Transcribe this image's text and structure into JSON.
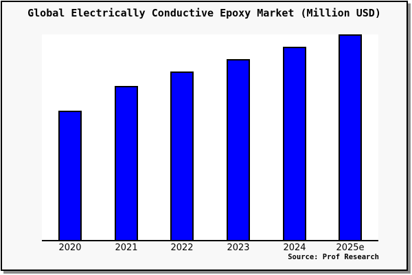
{
  "window": {
    "title": "Global Electrically Conductive Epoxy Market (Million USD)"
  },
  "chart_data": {
    "type": "bar",
    "title": "Global Electrically Conductive Epoxy Market (Million USD)",
    "categories": [
      "2020",
      "2021",
      "2022",
      "2023",
      "2024",
      "2025e"
    ],
    "values": [
      63,
      75,
      82,
      88,
      94,
      100
    ],
    "value_note": "Y axis has no tick labels; values are relative bar heights normalized so 2025e = 100",
    "xlabel": "",
    "ylabel": "",
    "ylim": [
      0,
      100
    ],
    "grid": false,
    "legend": null,
    "bar_color": "#0000ff",
    "bar_border_color": "#000000"
  },
  "source": {
    "label": "Source: Prof Research"
  },
  "colors": {
    "canvas_background": "#f8f8f8",
    "plot_background": "#ffffff",
    "frame_border": "#000000",
    "axis_line": "#000000",
    "shadow": "#8a8a8a",
    "text": "#000000"
  }
}
